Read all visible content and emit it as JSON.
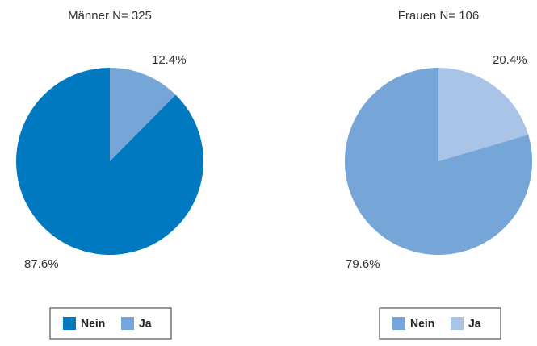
{
  "chart_data": [
    {
      "type": "pie",
      "title": "Männer N= 325",
      "categories": [
        "Nein",
        "Ja"
      ],
      "values": [
        87.6,
        12.4
      ],
      "value_labels": [
        "87.6%",
        "12.4%"
      ],
      "colors": [
        "#0079c1",
        "#76a5d8"
      ]
    },
    {
      "type": "pie",
      "title": "Frauen N= 106",
      "categories": [
        "Nein",
        "Ja"
      ],
      "values": [
        79.6,
        20.4
      ],
      "value_labels": [
        "79.6%",
        "20.4%"
      ],
      "colors": [
        "#76a5d8",
        "#aac4e8"
      ]
    }
  ]
}
